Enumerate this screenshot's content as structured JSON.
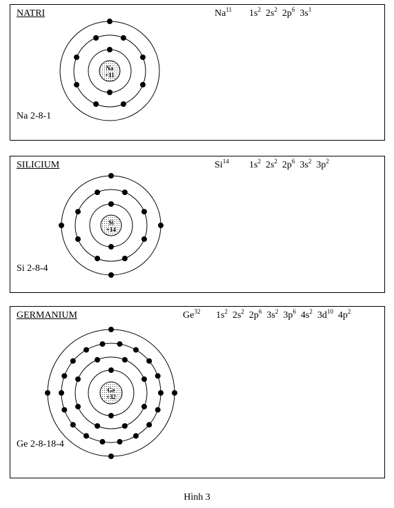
{
  "atoms": [
    {
      "title": "NATRI",
      "symbol": "Na",
      "atomic_number": "11",
      "configuration": [
        {
          "orbital": "1s",
          "count": "2"
        },
        {
          "orbital": "2s",
          "count": "2"
        },
        {
          "orbital": "2p",
          "count": "6"
        },
        {
          "orbital": "3s",
          "count": "1"
        }
      ],
      "nucleus_symbol": "Na",
      "nucleus_charge": "+11",
      "shells": [
        2,
        8,
        1
      ],
      "shell_label": "Na 2-8-1"
    },
    {
      "title": "SILICIUM",
      "symbol": "Si",
      "atomic_number": "14",
      "configuration": [
        {
          "orbital": "1s",
          "count": "2"
        },
        {
          "orbital": "2s",
          "count": "2"
        },
        {
          "orbital": "2p",
          "count": "6"
        },
        {
          "orbital": "3s",
          "count": "2"
        },
        {
          "orbital": "3p",
          "count": "2"
        }
      ],
      "nucleus_symbol": "Si",
      "nucleus_charge": "+14",
      "shells": [
        2,
        8,
        4
      ],
      "shell_label": "Si 2-8-4"
    },
    {
      "title": "GERMANIUM",
      "symbol": "Ge",
      "atomic_number": "32",
      "configuration": [
        {
          "orbital": "1s",
          "count": "2"
        },
        {
          "orbital": "2s",
          "count": "2"
        },
        {
          "orbital": "2p",
          "count": "6"
        },
        {
          "orbital": "3s",
          "count": "2"
        },
        {
          "orbital": "3p",
          "count": "6"
        },
        {
          "orbital": "4s",
          "count": "2"
        },
        {
          "orbital": "3d",
          "count": "10"
        },
        {
          "orbital": "4p",
          "count": "2"
        }
      ],
      "nucleus_symbol": "Ge",
      "nucleus_charge": "+32",
      "shells": [
        2,
        8,
        18,
        4
      ],
      "shell_label": "Ge 2-8-18-4"
    }
  ],
  "caption": "Hình 3"
}
